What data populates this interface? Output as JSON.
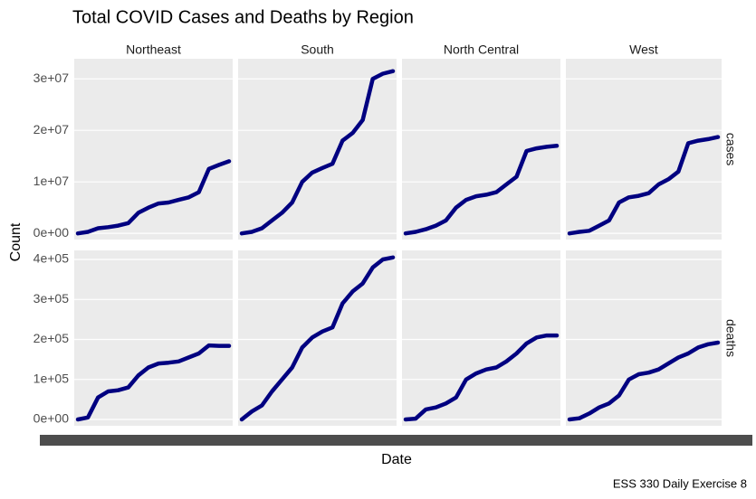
{
  "chart_data": {
    "type": "line",
    "title": "Total COVID Cases and Deaths by Region",
    "x_label": "Date",
    "y_label": "Count",
    "caption": "ESS 330 Daily Exercise 8",
    "color": "#000080",
    "grid": true,
    "columns": [
      "Northeast",
      "South",
      "North Central",
      "West"
    ],
    "rows": [
      {
        "name": "cases",
        "ylim": [
          -1200000,
          33900000
        ],
        "yticks": [
          {
            "value": 0,
            "label": "0e+00"
          },
          {
            "value": 10000000,
            "label": "1e+07"
          },
          {
            "value": 20000000,
            "label": "2e+07"
          },
          {
            "value": 30000000,
            "label": "3e+07"
          }
        ],
        "values": [
          [
            0,
            300000,
            1000000,
            1200000,
            1500000,
            2000000,
            4000000,
            5000000,
            5800000,
            6000000,
            6500000,
            7000000,
            8000000,
            12500000,
            13300000,
            14000000
          ],
          [
            0,
            300000,
            1000000,
            2500000,
            4000000,
            6000000,
            10000000,
            11800000,
            12700000,
            13500000,
            18000000,
            19500000,
            22000000,
            30000000,
            31000000,
            31500000
          ],
          [
            0,
            300000,
            800000,
            1500000,
            2500000,
            5000000,
            6500000,
            7200000,
            7500000,
            8000000,
            9500000,
            11000000,
            16000000,
            16500000,
            16800000,
            17000000
          ],
          [
            0,
            300000,
            500000,
            1500000,
            2500000,
            6000000,
            7000000,
            7300000,
            7800000,
            9500000,
            10500000,
            12000000,
            17500000,
            18000000,
            18300000,
            18700000
          ]
        ]
      },
      {
        "name": "deaths",
        "ylim": [
          -15800,
          422600
        ],
        "yticks": [
          {
            "value": 0,
            "label": "0e+00"
          },
          {
            "value": 100000,
            "label": "1e+05"
          },
          {
            "value": 200000,
            "label": "2e+05"
          },
          {
            "value": 300000,
            "label": "3e+05"
          },
          {
            "value": 400000,
            "label": "4e+05"
          }
        ],
        "values": [
          [
            0,
            5000,
            55000,
            70000,
            73000,
            80000,
            110000,
            130000,
            140000,
            142000,
            145000,
            155000,
            165000,
            185000,
            184000,
            184000
          ],
          [
            0,
            20000,
            35000,
            70000,
            100000,
            130000,
            180000,
            205000,
            220000,
            230000,
            290000,
            320000,
            340000,
            380000,
            400000,
            405000
          ],
          [
            0,
            2000,
            25000,
            30000,
            40000,
            55000,
            100000,
            115000,
            125000,
            130000,
            145000,
            165000,
            190000,
            205000,
            210000,
            210000
          ],
          [
            0,
            3000,
            15000,
            30000,
            40000,
            60000,
            100000,
            113000,
            117000,
            125000,
            140000,
            155000,
            165000,
            180000,
            188000,
            192000
          ]
        ]
      }
    ]
  }
}
